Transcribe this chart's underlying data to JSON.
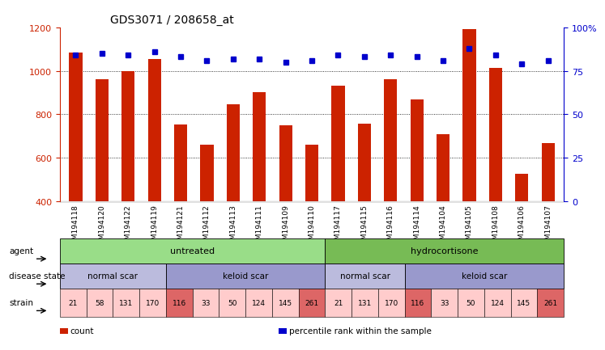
{
  "title": "GDS3071 / 208658_at",
  "samples": [
    "GSM194118",
    "GSM194120",
    "GSM194122",
    "GSM194119",
    "GSM194121",
    "GSM194112",
    "GSM194113",
    "GSM194111",
    "GSM194109",
    "GSM194110",
    "GSM194117",
    "GSM194115",
    "GSM194116",
    "GSM194114",
    "GSM194104",
    "GSM194105",
    "GSM194108",
    "GSM194106",
    "GSM194107"
  ],
  "bar_values": [
    1085,
    960,
    1000,
    1055,
    752,
    662,
    848,
    903,
    748,
    662,
    930,
    758,
    960,
    868,
    710,
    1193,
    1012,
    528,
    668
  ],
  "percentile_values": [
    84,
    85,
    84,
    86,
    83,
    81,
    82,
    82,
    80,
    81,
    84,
    83,
    84,
    83,
    81,
    88,
    84,
    79,
    81
  ],
  "bar_color": "#cc2200",
  "percentile_color": "#0000cc",
  "ylim_left": [
    400,
    1200
  ],
  "ylim_right": [
    0,
    100
  ],
  "yticks_left": [
    400,
    600,
    800,
    1000,
    1200
  ],
  "yticks_right": [
    0,
    25,
    50,
    75,
    100
  ],
  "ytick_labels_right": [
    "0",
    "25",
    "50",
    "75",
    "100%"
  ],
  "grid_values": [
    600,
    800,
    1000
  ],
  "agent_groups": [
    {
      "label": "untreated",
      "start": 0,
      "end": 10,
      "color": "#99dd88"
    },
    {
      "label": "hydrocortisone",
      "start": 10,
      "end": 19,
      "color": "#77bb55"
    }
  ],
  "disease_groups": [
    {
      "label": "normal scar",
      "start": 0,
      "end": 4,
      "color": "#bbbbdd"
    },
    {
      "label": "keloid scar",
      "start": 4,
      "end": 10,
      "color": "#9999cc"
    },
    {
      "label": "normal scar",
      "start": 10,
      "end": 13,
      "color": "#bbbbdd"
    },
    {
      "label": "keloid scar",
      "start": 13,
      "end": 19,
      "color": "#9999cc"
    }
  ],
  "strain_values": [
    21,
    58,
    131,
    170,
    116,
    33,
    50,
    124,
    145,
    261,
    21,
    131,
    170,
    116,
    33,
    50,
    124,
    145,
    261
  ],
  "strain_highlight": [
    4,
    9,
    13,
    18
  ],
  "strain_color_normal": "#ffcccc",
  "strain_color_highlight": "#dd6666",
  "row_labels": [
    "agent",
    "disease state",
    "strain"
  ],
  "legend_items": [
    {
      "label": "count",
      "color": "#cc2200"
    },
    {
      "label": "percentile rank within the sample",
      "color": "#0000cc"
    }
  ]
}
